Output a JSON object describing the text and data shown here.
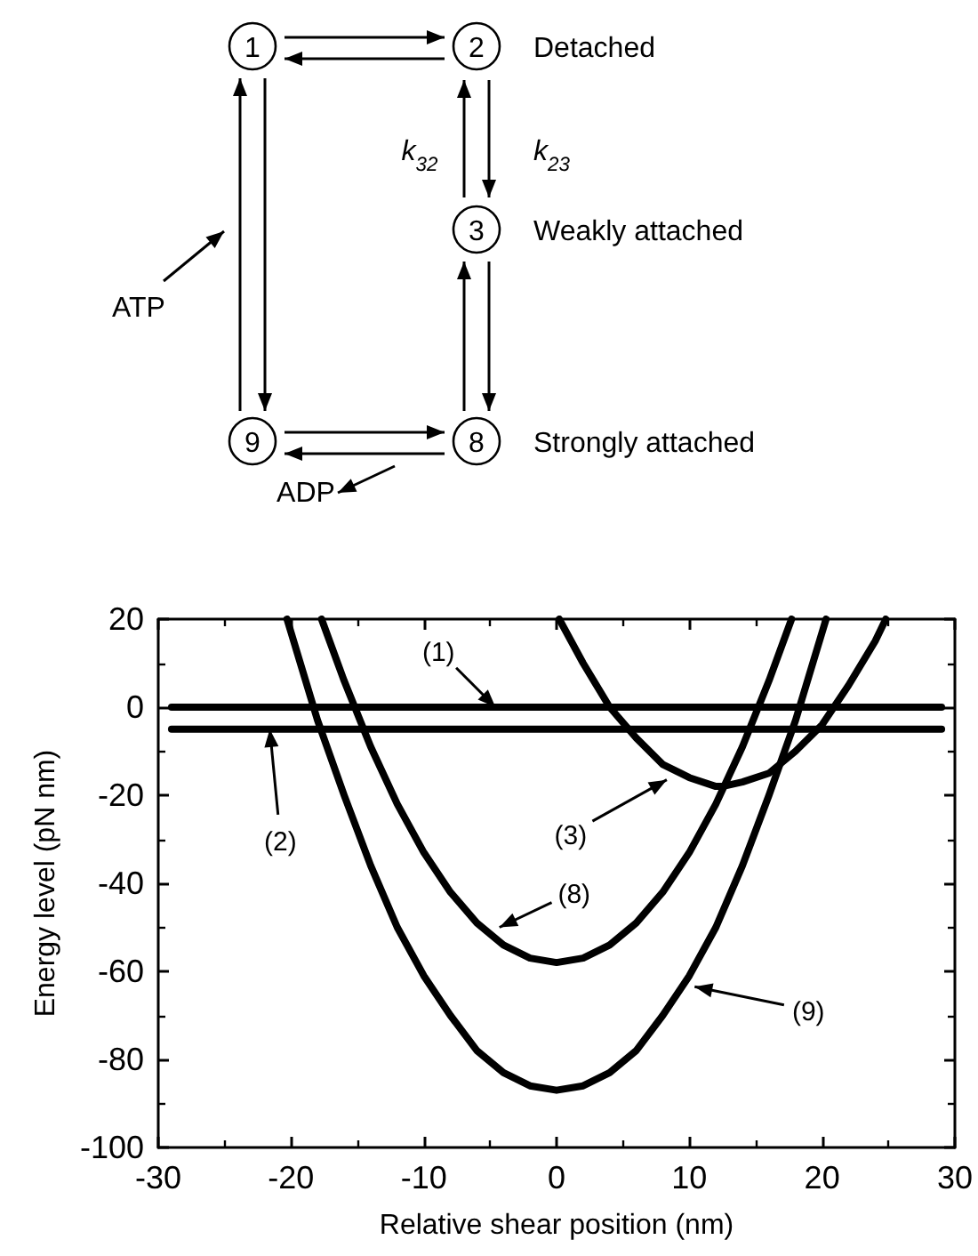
{
  "chart_data": [
    {
      "type": "other",
      "annotations": [
        "1",
        "2",
        "3",
        "8",
        "9",
        "Detached",
        "Weakly attached",
        "Strongly attached",
        "ATP",
        "ADP",
        "k$_{32}$",
        "k$_{23}$"
      ]
    },
    {
      "type": "line",
      "xlabel": "Relative shear position (nm)",
      "ylabel": "Energy level (pN nm)",
      "xlim": [
        -30,
        30
      ],
      "xticks": [
        -30,
        -20,
        -10,
        0,
        10,
        20,
        30
      ],
      "ylim": [
        -100,
        20
      ],
      "yticks": [
        -100,
        -80,
        -60,
        -40,
        -20,
        0,
        20
      ],
      "grid": false,
      "marker": "none",
      "line_style": "solid",
      "series": [
        {
          "color": "#000000",
          "x": [
            -29,
            29
          ],
          "values": [
            0,
            0
          ]
        },
        {
          "color": "#000000",
          "x": [
            -29,
            29
          ],
          "values": [
            -5,
            -5
          ]
        },
        {
          "color": "#000000",
          "x": [
            0.2,
            2,
            4,
            6,
            8,
            10,
            12,
            12.5,
            14,
            16,
            18,
            20,
            22,
            24,
            24.8
          ],
          "values": [
            20,
            10,
            0,
            -7,
            -13,
            -16,
            -18,
            -18,
            -17,
            -15,
            -10,
            -4,
            5,
            15,
            20
          ]
        },
        {
          "color": "#000000",
          "x": [
            -17.7,
            -16,
            -14,
            -12,
            -10,
            -8,
            -6,
            -4,
            -2,
            0,
            2,
            4,
            6,
            8,
            10,
            12,
            14,
            16,
            17.7
          ],
          "values": [
            20,
            6,
            -9,
            -22,
            -33,
            -42,
            -49,
            -54,
            -57,
            -58,
            -57,
            -54,
            -49,
            -42,
            -33,
            -22,
            -9,
            6,
            20
          ]
        },
        {
          "color": "#000000",
          "x": [
            -20.3,
            -20,
            -18,
            -16,
            -14,
            -12,
            -10,
            -8,
            -6,
            -4,
            -2,
            0,
            2,
            4,
            6,
            8,
            10,
            12,
            14,
            16,
            18,
            20,
            20.3
          ],
          "values": [
            20,
            17,
            -3,
            -20,
            -36,
            -50,
            -61,
            -70,
            -78,
            -83,
            -86,
            -87,
            -86,
            -83,
            -78,
            -70,
            -61,
            -50,
            -36,
            -20,
            -3,
            17,
            20
          ]
        }
      ],
      "annotations": [
        {
          "text": "(1)",
          "x": -4.6,
          "y": 0
        },
        {
          "text": "(2)",
          "x": -21.6,
          "y": -5
        },
        {
          "text": "(3)",
          "x": 8.3,
          "y": -16.5
        },
        {
          "text": "(8)",
          "x": -4.3,
          "y": -50
        },
        {
          "text": "(9)",
          "x": 10.4,
          "y": -63.5
        }
      ]
    }
  ]
}
